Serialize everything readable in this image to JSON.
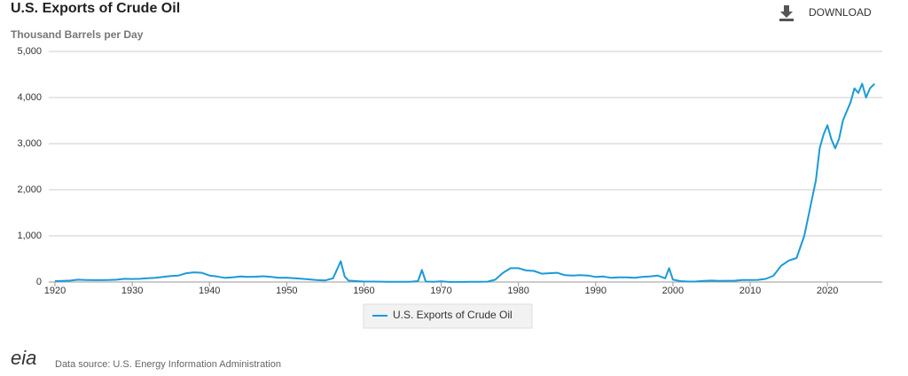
{
  "chart_data": {
    "type": "line",
    "title": "U.S. Exports of Crude Oil",
    "subtitle": "Thousand Barrels per Day",
    "download": "DOWNLOAD",
    "logo": "eia",
    "source": "Data source: U.S. Energy Information Administration",
    "xlim": [
      1919.2,
      2027.1
    ],
    "ylim": [
      0,
      5000
    ],
    "xticks": [
      1920,
      1930,
      1940,
      1950,
      1960,
      1970,
      1980,
      1990,
      2000,
      2010,
      2020
    ],
    "yticks": [
      0,
      {
        "value": 1000,
        "label": "1,000"
      },
      {
        "value": 2000,
        "label": "2,000"
      },
      {
        "value": 3000,
        "label": "3,000"
      },
      {
        "value": 4000,
        "label": "4,000"
      },
      {
        "value": 5000,
        "label": "5,000"
      }
    ],
    "grid": true,
    "x": [
      1920,
      1921,
      1922,
      1923,
      1924,
      1925,
      1926,
      1927,
      1928,
      1929,
      1930,
      1931,
      1932,
      1933,
      1934,
      1935,
      1936,
      1937,
      1938,
      1939,
      1940,
      1941,
      1942,
      1943,
      1944,
      1945,
      1946,
      1947,
      1948,
      1949,
      1950,
      1951,
      1952,
      1953,
      1954,
      1955,
      1956,
      1957,
      1957.5,
      1958,
      1959,
      1960,
      1961,
      1962,
      1963,
      1964,
      1965,
      1966,
      1967,
      1967.5,
      1968,
      1969,
      1970,
      1971,
      1972,
      1973,
      1974,
      1975,
      1976,
      1977,
      1978,
      1979,
      1980,
      1981,
      1982,
      1983,
      1984,
      1985,
      1986,
      1987,
      1988,
      1989,
      1990,
      1991,
      1992,
      1993,
      1994,
      1995,
      1996,
      1997,
      1998,
      1999,
      1999.5,
      2000,
      2001,
      2002,
      2003,
      2004,
      2005,
      2006,
      2007,
      2008,
      2009,
      2010,
      2011,
      2012,
      2013,
      2014,
      2015,
      2016,
      2017,
      2017.5,
      2018,
      2018.5,
      2019,
      2019.5,
      2020,
      2020.5,
      2021,
      2021.5,
      2022,
      2022.5,
      2023,
      2023.5,
      2024,
      2024.5,
      2025,
      2025.5,
      2026.1
    ],
    "series": [
      {
        "name": "U.S. Exports of Crude Oil",
        "color": "#1a9bd7",
        "values": [
          20,
          25,
          30,
          50,
          45,
          40,
          40,
          45,
          50,
          70,
          65,
          70,
          80,
          90,
          110,
          130,
          140,
          190,
          210,
          200,
          140,
          120,
          90,
          100,
          120,
          110,
          115,
          125,
          110,
          90,
          95,
          80,
          70,
          55,
          40,
          35,
          80,
          450,
          120,
          30,
          20,
          10,
          10,
          8,
          5,
          5,
          5,
          5,
          20,
          260,
          10,
          5,
          15,
          2,
          1,
          2,
          3,
          6,
          8,
          50,
          200,
          300,
          300,
          250,
          240,
          180,
          190,
          200,
          150,
          140,
          150,
          140,
          110,
          120,
          90,
          100,
          100,
          90,
          110,
          120,
          140,
          80,
          300,
          50,
          20,
          10,
          12,
          25,
          30,
          25,
          27,
          29,
          44,
          42,
          47,
          67,
          134,
          351,
          465,
          520,
          1000,
          1400,
          1800,
          2200,
          2900,
          3200,
          3400,
          3100,
          2900,
          3100,
          3500,
          3700,
          3900,
          4200,
          4100,
          4300,
          4000,
          4200,
          4300
        ]
      }
    ]
  }
}
